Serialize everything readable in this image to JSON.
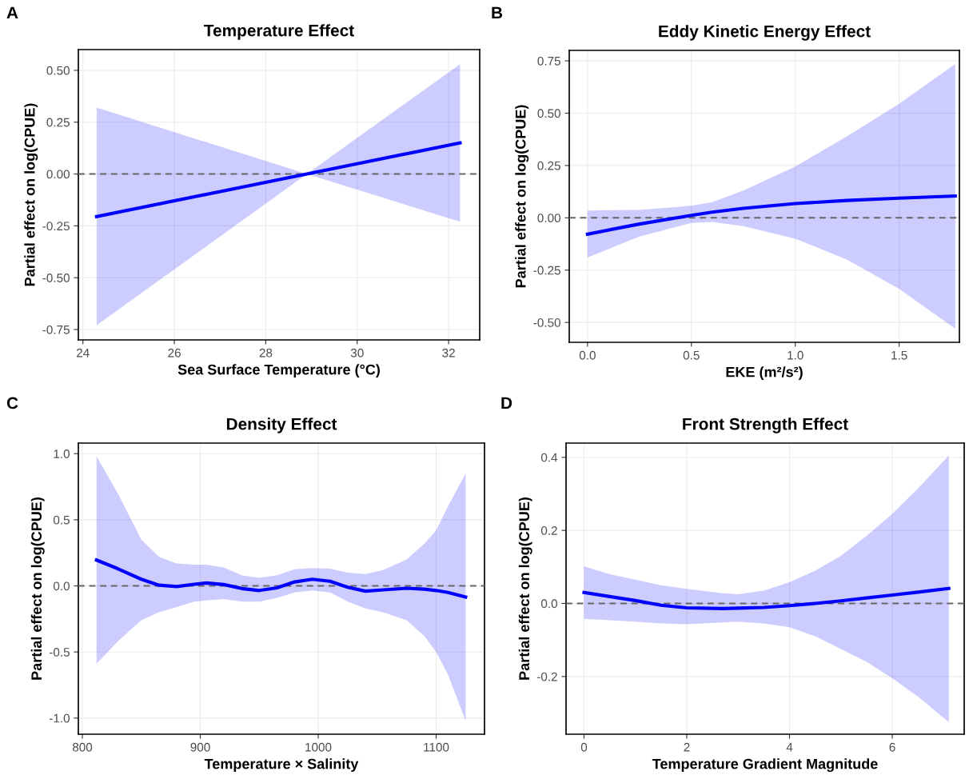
{
  "chart_data": [
    {
      "type": "line",
      "title": "Temperature Effect",
      "xlabel": "Sea Surface Temperature (°C)",
      "ylabel": "Partial effect on log(CPUE)",
      "annotations": [
        "A"
      ],
      "x": [
        24.3,
        28.9,
        32.25
      ],
      "series": [
        {
          "color": "#0000ff",
          "values": [
            -0.205,
            0.0,
            0.15
          ],
          "upper": [
            0.32,
            0.0,
            0.53
          ],
          "lower": [
            -0.73,
            0.0,
            -0.23
          ]
        }
      ],
      "xlim": [
        23.9,
        32.68
      ],
      "ylim": [
        -0.8,
        0.6
      ],
      "xticks": [
        24,
        26,
        28,
        30,
        32
      ],
      "yticks": [
        {
          "value": -0.75,
          "label": "-0.75"
        },
        {
          "value": -0.5,
          "label": "-0.50"
        },
        {
          "value": -0.25,
          "label": "-0.25"
        },
        {
          "value": 0,
          "label": "0.00"
        },
        {
          "value": 0.25,
          "label": "0.25"
        },
        {
          "value": 0.5,
          "label": "0.50"
        }
      ],
      "ref_lines": [
        {
          "axis": "y",
          "value": 0,
          "color": "#666666",
          "line_style": "dashed"
        }
      ],
      "grid": true
    },
    {
      "type": "line",
      "title": "Eddy Kinetic Energy Effect",
      "xlabel": "EKE (m²/s²)",
      "ylabel": "Partial effect on log(CPUE)",
      "annotations": [
        "B"
      ],
      "x": [
        0,
        0.25,
        0.5,
        0.6,
        0.75,
        1.0,
        1.25,
        1.5,
        1.77
      ],
      "series": [
        {
          "color": "#0000ff",
          "values": [
            -0.078,
            -0.03,
            0.012,
            0.027,
            0.045,
            0.068,
            0.083,
            0.094,
            0.104
          ],
          "upper": [
            0.035,
            0.038,
            0.058,
            0.075,
            0.13,
            0.245,
            0.39,
            0.545,
            0.735
          ],
          "lower": [
            -0.19,
            -0.09,
            -0.025,
            -0.02,
            -0.04,
            -0.1,
            -0.2,
            -0.34,
            -0.53
          ]
        }
      ],
      "xlim": [
        -0.088,
        1.79
      ],
      "ylim": [
        -0.595,
        0.8
      ],
      "xticks": [
        {
          "value": 0,
          "label": "0.0"
        },
        {
          "value": 0.5,
          "label": "0.5"
        },
        {
          "value": 1,
          "label": "1.0"
        },
        {
          "value": 1.5,
          "label": "1.5"
        }
      ],
      "yticks": [
        {
          "value": -0.5,
          "label": "-0.50"
        },
        {
          "value": -0.25,
          "label": "-0.25"
        },
        {
          "value": 0,
          "label": "0.00"
        },
        {
          "value": 0.25,
          "label": "0.25"
        },
        {
          "value": 0.5,
          "label": "0.50"
        },
        {
          "value": 0.75,
          "label": "0.75"
        }
      ],
      "ref_lines": [
        {
          "axis": "y",
          "value": 0,
          "color": "#666666",
          "line_style": "dashed"
        }
      ],
      "grid": true
    },
    {
      "type": "line",
      "title": "Density Effect",
      "xlabel": "Temperature × Salinity",
      "ylabel": "Partial effect on log(CPUE)",
      "annotations": [
        "C"
      ],
      "x": [
        812,
        830,
        850,
        865,
        880,
        895,
        905,
        920,
        935,
        950,
        965,
        980,
        995,
        1010,
        1025,
        1040,
        1055,
        1075,
        1090,
        1100,
        1110,
        1125
      ],
      "series": [
        {
          "color": "#0000ff",
          "values": [
            0.195,
            0.13,
            0.05,
            0.005,
            -0.005,
            0.012,
            0.022,
            0.01,
            -0.02,
            -0.035,
            -0.015,
            0.03,
            0.05,
            0.035,
            -0.01,
            -0.04,
            -0.03,
            -0.018,
            -0.025,
            -0.035,
            -0.05,
            -0.085
          ],
          "upper": [
            0.98,
            0.7,
            0.35,
            0.22,
            0.17,
            0.16,
            0.16,
            0.14,
            0.08,
            0.06,
            0.08,
            0.125,
            0.135,
            0.13,
            0.1,
            0.09,
            0.12,
            0.2,
            0.32,
            0.42,
            0.6,
            0.85
          ],
          "lower": [
            -0.59,
            -0.42,
            -0.26,
            -0.2,
            -0.16,
            -0.12,
            -0.11,
            -0.1,
            -0.12,
            -0.12,
            -0.09,
            -0.05,
            -0.035,
            -0.05,
            -0.12,
            -0.17,
            -0.2,
            -0.26,
            -0.38,
            -0.5,
            -0.67,
            -1.02
          ]
        }
      ],
      "xlim": [
        796.6,
        1141
      ],
      "ylim": [
        -1.122,
        1.08
      ],
      "xticks": [
        800,
        900,
        1000,
        1100
      ],
      "yticks": [
        {
          "value": -1,
          "label": "-1.0"
        },
        {
          "value": -0.5,
          "label": "-0.5"
        },
        {
          "value": 0,
          "label": "0.0"
        },
        {
          "value": 0.5,
          "label": "0.5"
        },
        {
          "value": 1,
          "label": "1.0"
        }
      ],
      "ref_lines": [
        {
          "axis": "y",
          "value": 0,
          "color": "#666666",
          "line_style": "dashed"
        }
      ],
      "grid": true
    },
    {
      "type": "line",
      "title": "Front Strength Effect",
      "xlabel": "Temperature Gradient Magnitude",
      "ylabel": "Partial effect on log(CPUE)",
      "annotations": [
        "D"
      ],
      "x": [
        0,
        0.5,
        1,
        1.5,
        2,
        2.7,
        3,
        3.5,
        4,
        4.5,
        5,
        5.5,
        6,
        6.5,
        7.1
      ],
      "series": [
        {
          "color": "#0000ff",
          "values": [
            0.03,
            0.019,
            0.008,
            -0.005,
            -0.012,
            -0.014,
            -0.013,
            -0.011,
            -0.006,
            0.0,
            0.007,
            0.015,
            0.023,
            0.031,
            0.041
          ],
          "upper": [
            0.102,
            0.08,
            0.065,
            0.05,
            0.04,
            0.028,
            0.025,
            0.035,
            0.058,
            0.09,
            0.13,
            0.185,
            0.245,
            0.315,
            0.405
          ],
          "lower": [
            -0.042,
            -0.046,
            -0.05,
            -0.055,
            -0.057,
            -0.052,
            -0.05,
            -0.055,
            -0.065,
            -0.09,
            -0.125,
            -0.16,
            -0.205,
            -0.255,
            -0.325
          ]
        }
      ],
      "xlim": [
        -0.35,
        7.4
      ],
      "ylim": [
        -0.358,
        0.439
      ],
      "xticks": [
        0,
        2,
        4,
        6
      ],
      "yticks": [
        {
          "value": -0.2,
          "label": "-0.2"
        },
        {
          "value": 0,
          "label": "0.0"
        },
        {
          "value": 0.2,
          "label": "0.2"
        },
        {
          "value": 0.4,
          "label": "0.4"
        }
      ],
      "ref_lines": [
        {
          "axis": "y",
          "value": 0,
          "color": "#666666",
          "line_style": "dashed"
        }
      ],
      "grid": true
    }
  ]
}
